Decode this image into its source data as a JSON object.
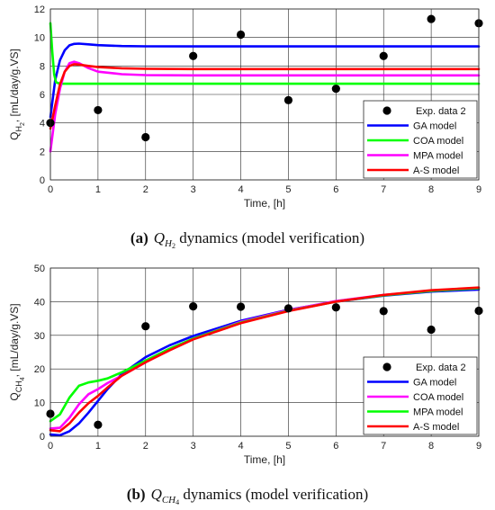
{
  "chart_data": [
    {
      "type": "line",
      "ylabel": {
        "main": "Q",
        "sub": "H",
        "subsub": "2",
        "unit": ", [mL/day/g.VS]"
      },
      "xlabel": "Time, [h]",
      "xlim": [
        0,
        9
      ],
      "ylim": [
        0,
        12
      ],
      "xticks": [
        "0",
        "1",
        "2",
        "3",
        "4",
        "5",
        "6",
        "7",
        "8",
        "9"
      ],
      "yticks": [
        "0",
        "2",
        "4",
        "6",
        "8",
        "10",
        "12"
      ],
      "grid": true,
      "legend_position": "bottom-right",
      "scatter": {
        "name": "Exp. data 2",
        "color": "#000000",
        "points": [
          [
            0,
            4.0
          ],
          [
            1,
            4.9
          ],
          [
            2,
            3.0
          ],
          [
            3,
            8.7
          ],
          [
            4,
            10.2
          ],
          [
            5,
            5.6
          ],
          [
            6,
            6.4
          ],
          [
            7,
            8.7
          ],
          [
            8,
            11.3
          ],
          [
            9,
            11.0
          ]
        ]
      },
      "series": [
        {
          "name": "GA model",
          "color": "#0000ff",
          "points": [
            [
              0,
              4.4
            ],
            [
              0.1,
              7.0
            ],
            [
              0.2,
              8.4
            ],
            [
              0.3,
              9.1
            ],
            [
              0.4,
              9.45
            ],
            [
              0.5,
              9.55
            ],
            [
              0.6,
              9.57
            ],
            [
              0.8,
              9.52
            ],
            [
              1.0,
              9.46
            ],
            [
              1.5,
              9.4
            ],
            [
              2,
              9.38
            ],
            [
              3,
              9.37
            ],
            [
              9,
              9.37
            ]
          ]
        },
        {
          "name": "COA model",
          "color": "#00ff00",
          "points": [
            [
              0,
              11.0
            ],
            [
              0.04,
              9.0
            ],
            [
              0.08,
              7.4
            ],
            [
              0.12,
              6.85
            ],
            [
              0.2,
              6.75
            ],
            [
              0.5,
              6.75
            ],
            [
              9,
              6.75
            ]
          ]
        },
        {
          "name": "MPA model",
          "color": "#ff00ff",
          "points": [
            [
              0,
              2.0
            ],
            [
              0.1,
              4.6
            ],
            [
              0.2,
              6.4
            ],
            [
              0.3,
              7.6
            ],
            [
              0.4,
              8.2
            ],
            [
              0.5,
              8.3
            ],
            [
              0.6,
              8.2
            ],
            [
              0.8,
              7.85
            ],
            [
              1.0,
              7.6
            ],
            [
              1.5,
              7.42
            ],
            [
              2,
              7.36
            ],
            [
              3,
              7.34
            ],
            [
              9,
              7.34
            ]
          ]
        },
        {
          "name": "A-S model",
          "color": "#ff0000",
          "points": [
            [
              0,
              3.6
            ],
            [
              0.1,
              5.2
            ],
            [
              0.2,
              6.7
            ],
            [
              0.3,
              7.6
            ],
            [
              0.4,
              8.0
            ],
            [
              0.5,
              8.12
            ],
            [
              0.6,
              8.1
            ],
            [
              0.8,
              8.0
            ],
            [
              1.0,
              7.92
            ],
            [
              1.5,
              7.84
            ],
            [
              2,
              7.8
            ],
            [
              3,
              7.78
            ],
            [
              9,
              7.78
            ]
          ]
        }
      ],
      "caption": {
        "label": "(a)",
        "var_main": "Q",
        "var_sub": "H",
        "var_subsub": "2",
        "text": " dynamics (model verification)"
      }
    },
    {
      "type": "line",
      "ylabel": {
        "main": "Q",
        "sub": "CH",
        "subsub": "4",
        "unit": ", [mL/day/g.VS]"
      },
      "xlabel": "Time, [h]",
      "xlim": [
        0,
        9
      ],
      "ylim": [
        0,
        50
      ],
      "xticks": [
        "0",
        "1",
        "2",
        "3",
        "4",
        "5",
        "6",
        "7",
        "8",
        "9"
      ],
      "yticks": [
        "0",
        "10",
        "20",
        "30",
        "40",
        "50"
      ],
      "grid": true,
      "legend_position": "bottom-right",
      "scatter": {
        "name": "Exp. data 2",
        "color": "#000000",
        "points": [
          [
            0,
            6.7
          ],
          [
            1,
            3.4
          ],
          [
            2,
            32.7
          ],
          [
            3,
            38.6
          ],
          [
            4,
            38.5
          ],
          [
            5,
            38.0
          ],
          [
            6,
            38.3
          ],
          [
            7,
            37.2
          ],
          [
            8,
            31.7
          ],
          [
            9,
            37.3
          ]
        ]
      },
      "series": [
        {
          "name": "GA model",
          "color": "#0000ff",
          "points": [
            [
              0,
              0.5
            ],
            [
              0.2,
              0.3
            ],
            [
              0.4,
              1.5
            ],
            [
              0.6,
              3.8
            ],
            [
              0.8,
              7.0
            ],
            [
              1.0,
              10.5
            ],
            [
              1.2,
              14.0
            ],
            [
              1.5,
              18.5
            ],
            [
              2,
              23.5
            ],
            [
              2.5,
              27.0
            ],
            [
              3,
              29.8
            ],
            [
              4,
              34.3
            ],
            [
              5,
              37.6
            ],
            [
              6,
              40.0
            ],
            [
              7,
              41.8
            ],
            [
              8,
              43.0
            ],
            [
              9,
              43.6
            ]
          ]
        },
        {
          "name": "COA model",
          "color": "#ff00ff",
          "points": [
            [
              0,
              2.3
            ],
            [
              0.2,
              2.5
            ],
            [
              0.4,
              5.5
            ],
            [
              0.6,
              9.5
            ],
            [
              0.8,
              12.5
            ],
            [
              1.0,
              14.0
            ],
            [
              1.2,
              15.8
            ],
            [
              1.5,
              18.0
            ],
            [
              2,
              22.0
            ],
            [
              2.5,
              25.8
            ],
            [
              3,
              29.0
            ],
            [
              4,
              34.0
            ],
            [
              5,
              37.5
            ],
            [
              6,
              40.2
            ],
            [
              7,
              42.0
            ],
            [
              8,
              43.2
            ],
            [
              9,
              44.0
            ]
          ]
        },
        {
          "name": "MPA model",
          "color": "#00ff00",
          "points": [
            [
              0,
              4.5
            ],
            [
              0.2,
              6.5
            ],
            [
              0.4,
              11.5
            ],
            [
              0.6,
              15.0
            ],
            [
              0.8,
              16.0
            ],
            [
              1.0,
              16.5
            ],
            [
              1.2,
              17.2
            ],
            [
              1.5,
              19.0
            ],
            [
              2,
              22.5
            ],
            [
              2.5,
              26.0
            ],
            [
              3,
              29.0
            ],
            [
              4,
              33.8
            ],
            [
              5,
              37.3
            ],
            [
              6,
              40.0
            ],
            [
              7,
              41.9
            ],
            [
              8,
              43.2
            ],
            [
              9,
              44.0
            ]
          ]
        },
        {
          "name": "A-S model",
          "color": "#ff0000",
          "points": [
            [
              0,
              1.8
            ],
            [
              0.2,
              1.5
            ],
            [
              0.4,
              3.8
            ],
            [
              0.6,
              7.0
            ],
            [
              0.8,
              9.8
            ],
            [
              1.0,
              12.0
            ],
            [
              1.2,
              14.5
            ],
            [
              1.5,
              18.0
            ],
            [
              2,
              22.0
            ],
            [
              2.5,
              25.5
            ],
            [
              3,
              28.8
            ],
            [
              4,
              33.6
            ],
            [
              5,
              37.2
            ],
            [
              6,
              40.0
            ],
            [
              7,
              42.0
            ],
            [
              8,
              43.4
            ],
            [
              9,
              44.2
            ]
          ]
        }
      ],
      "caption": {
        "label": "(b)",
        "var_main": "Q",
        "var_sub": "CH",
        "var_subsub": "4",
        "text": " dynamics (model verification)"
      }
    }
  ]
}
